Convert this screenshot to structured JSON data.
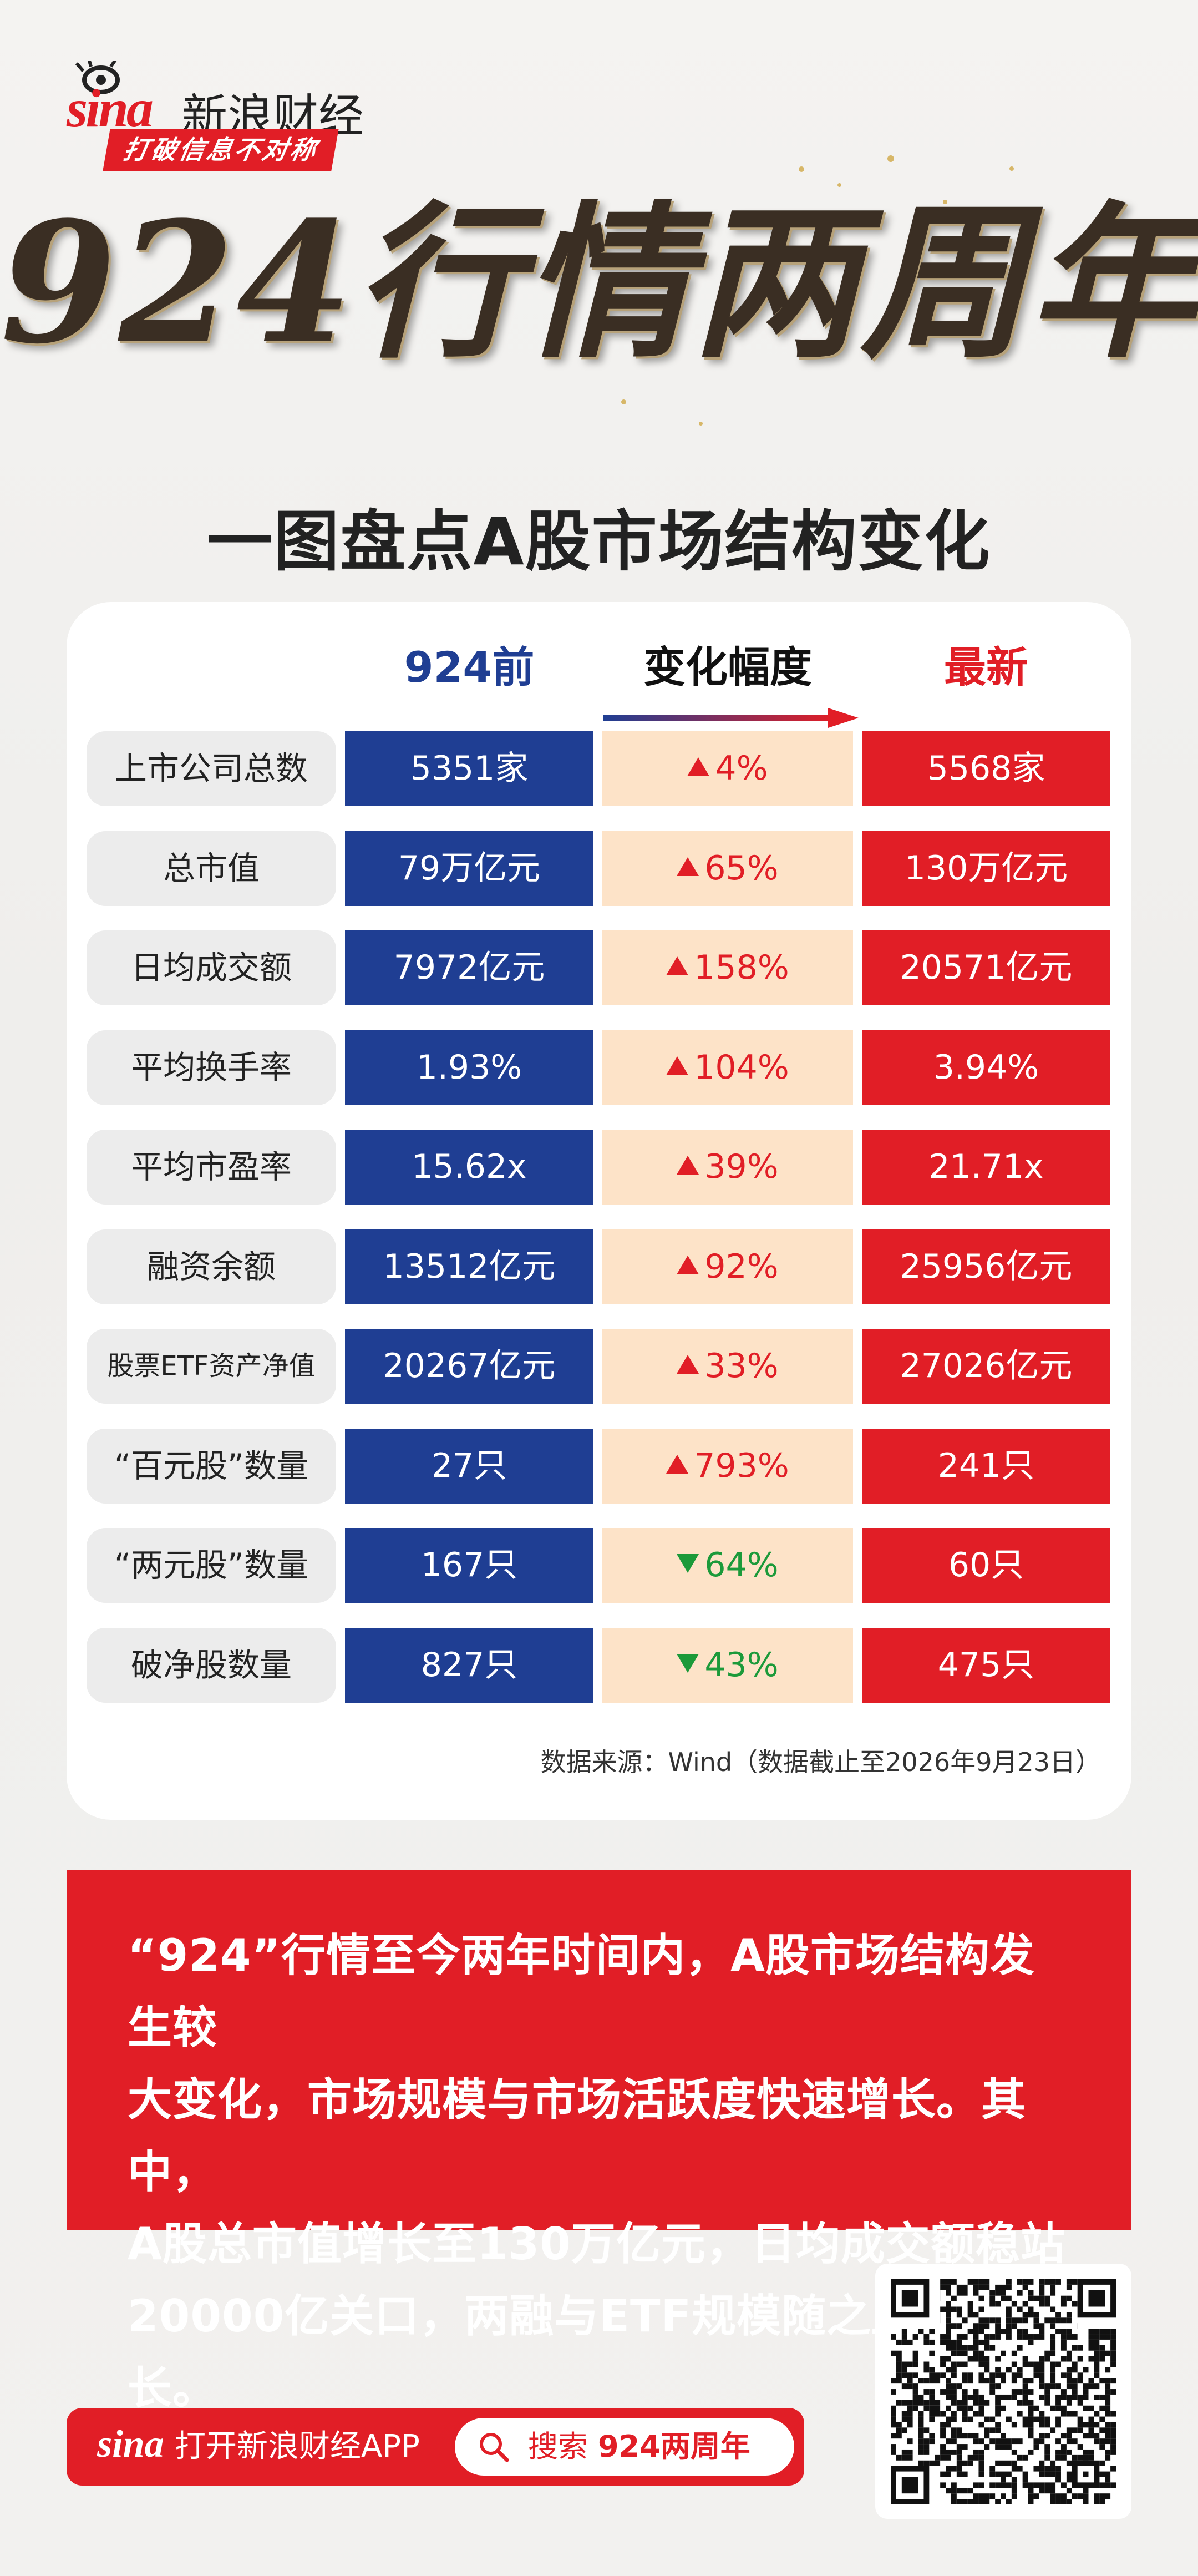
{
  "brand": {
    "logo_latin": "sina",
    "logo_cn": "新浪财经",
    "slogan": "打破信息不对称"
  },
  "hero": {
    "title": "924行情两周年",
    "subtitle": "一图盘点A股市场结构变化"
  },
  "table": {
    "headers": {
      "before": "924前",
      "change": "变化幅度",
      "latest": "最新"
    },
    "rows": [
      {
        "label": "上市公司总数",
        "before": "5351家",
        "change": "4%",
        "direction": "up",
        "latest": "5568家"
      },
      {
        "label": "总市值",
        "before": "79万亿元",
        "change": "65%",
        "direction": "up",
        "latest": "130万亿元"
      },
      {
        "label": "日均成交额",
        "before": "7972亿元",
        "change": "158%",
        "direction": "up",
        "latest": "20571亿元"
      },
      {
        "label": "平均换手率",
        "before": "1.93%",
        "change": "104%",
        "direction": "up",
        "latest": "3.94%"
      },
      {
        "label": "平均市盈率",
        "before": "15.62x",
        "change": "39%",
        "direction": "up",
        "latest": "21.71x"
      },
      {
        "label": "融资余额",
        "before": "13512亿元",
        "change": "92%",
        "direction": "up",
        "latest": "25956亿元"
      },
      {
        "label": "股票ETF资产净值",
        "before": "20267亿元",
        "change": "33%",
        "direction": "up",
        "latest": "27026亿元"
      },
      {
        "label": "“百元股”数量",
        "before": "27只",
        "change": "793%",
        "direction": "up",
        "latest": "241只"
      },
      {
        "label": "“两元股”数量",
        "before": "167只",
        "change": "64%",
        "direction": "down",
        "latest": "60只"
      },
      {
        "label": "破净股数量",
        "before": "827只",
        "change": "43%",
        "direction": "down",
        "latest": "475只"
      }
    ],
    "source": "数据来源：Wind（数据截止至2026年9月23日）"
  },
  "summary": {
    "lines": [
      "“924”行情至今两年时间内，A股市场结构发生较",
      "大变化，市场规模与市场活跃度快速增长。其中，",
      "A股总市值增长至130万亿元，日均成交额稳站",
      "20000亿关口，两融与ETF规模随之显著增长。"
    ]
  },
  "footer": {
    "app_logo": "sina",
    "app_text": "打开新浪财经APP",
    "search_label": "搜索",
    "search_keyword": "924两周年"
  },
  "colors": {
    "brand_red": "#e11e26",
    "before_blue": "#1f3e93",
    "change_bg": "#fde3c8",
    "down_green": "#1c9a3a"
  }
}
